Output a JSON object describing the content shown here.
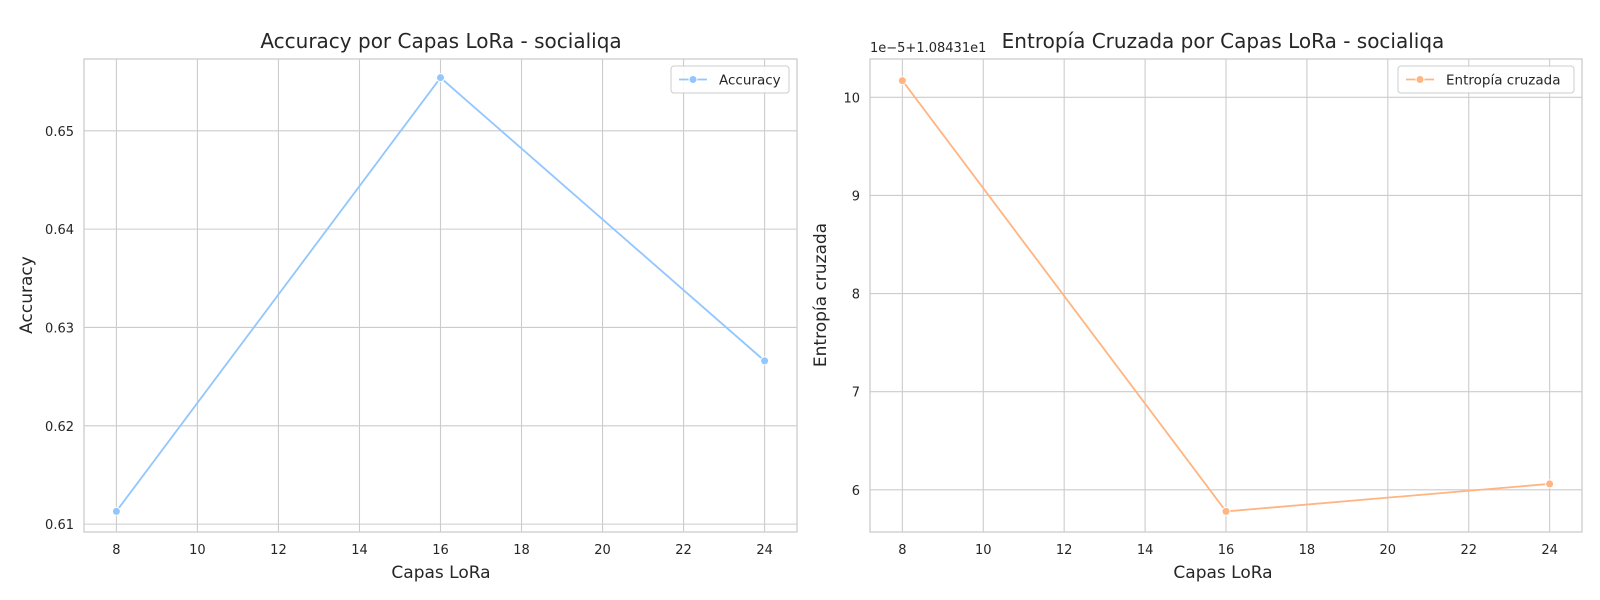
{
  "chart_data": [
    {
      "type": "line",
      "title": "Accuracy por Capas LoRa - socialiqa",
      "xlabel": "Capas LoRa",
      "ylabel": "Accuracy",
      "x": [
        8,
        16,
        24
      ],
      "xticks": [
        "8",
        "10",
        "12",
        "14",
        "16",
        "18",
        "20",
        "22",
        "24"
      ],
      "xlim": [
        7.2,
        24.8
      ],
      "yticks": [
        "0.61",
        "0.62",
        "0.63",
        "0.64",
        "0.65"
      ],
      "ylim": [
        0.6092,
        0.6573
      ],
      "grid": true,
      "legend_position": "top-right",
      "series": [
        {
          "name": "Accuracy",
          "color": "#92c6ff",
          "values": [
            0.6113,
            0.6554,
            0.6266
          ]
        }
      ]
    },
    {
      "type": "line",
      "title": "Entropía Cruzada por Capas LoRa - socialiqa",
      "xlabel": "Capas LoRa",
      "ylabel": "Entropía cruzada",
      "axis_offset_text": "1e−5+1.08431e1",
      "x": [
        8,
        16,
        24
      ],
      "xticks": [
        "8",
        "10",
        "12",
        "14",
        "16",
        "18",
        "20",
        "22",
        "24"
      ],
      "xlim": [
        7.2,
        24.8
      ],
      "yticks": [
        "6",
        "7",
        "8",
        "9",
        "10"
      ],
      "ylim": [
        5.57,
        10.39
      ],
      "grid": true,
      "legend_position": "top-right",
      "series": [
        {
          "name": "Entropía cruzada",
          "color": "#ffb482",
          "values": [
            10.17,
            5.78,
            6.06
          ]
        }
      ]
    }
  ]
}
